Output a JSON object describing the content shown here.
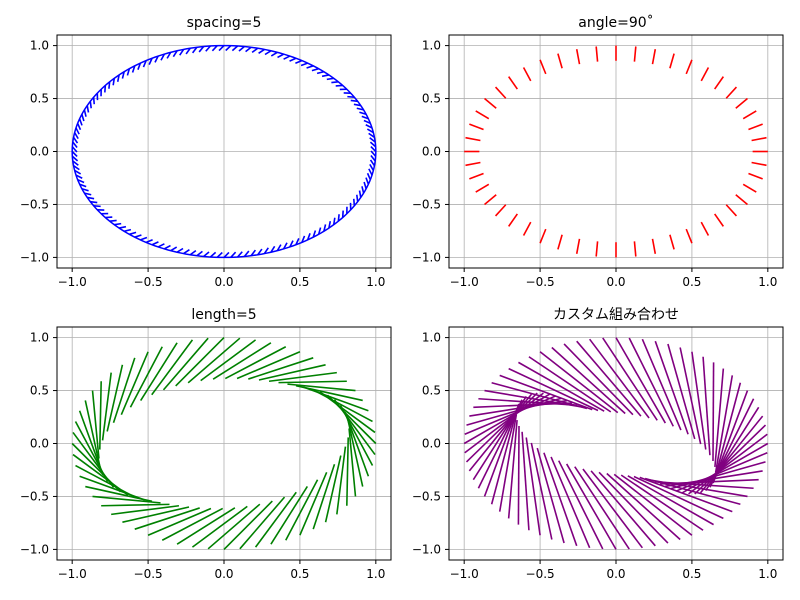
{
  "chart_data": [
    {
      "type": "line",
      "title": "spacing=5",
      "color": "#0000ff",
      "xlim": [
        -1.1,
        1.1
      ],
      "ylim": [
        -1.1,
        1.1
      ],
      "xticks": [
        "−1.0",
        "−0.5",
        "0.0",
        "0.5",
        "1.0"
      ],
      "yticks": [
        "−1.0",
        "−0.5",
        "0.0",
        "0.5",
        "1.0"
      ],
      "grid": true,
      "series": [
        {
          "kind": "ellipse-with-tick-path",
          "rx": 1.0,
          "ry": 1.0,
          "tick_spacing": 5,
          "tick_angle_deg": 45,
          "tick_length_data": 0.05
        }
      ]
    },
    {
      "type": "line",
      "title": "angle=90˚",
      "color": "#ff0000",
      "xlim": [
        -1.1,
        1.1
      ],
      "ylim": [
        -1.1,
        1.1
      ],
      "xticks": [
        "−1.0",
        "−0.5",
        "0.0",
        "0.5",
        "1.0"
      ],
      "yticks": [
        "−1.0",
        "−0.5",
        "0.0",
        "0.5",
        "1.0"
      ],
      "grid": true,
      "series": [
        {
          "kind": "tick-path",
          "rx": 1.0,
          "ry": 1.0,
          "tick_count": 48,
          "tick_angle_deg": 90,
          "tick_length_data": 0.1
        }
      ]
    },
    {
      "type": "line",
      "title": "length=5",
      "color": "#008000",
      "xlim": [
        -1.1,
        1.1
      ],
      "ylim": [
        -1.1,
        1.1
      ],
      "xticks": [
        "−1.0",
        "−0.5",
        "0.0",
        "0.5",
        "1.0"
      ],
      "yticks": [
        "−1.0",
        "−0.5",
        "0.0",
        "0.5",
        "1.0"
      ],
      "grid": true,
      "series": [
        {
          "kind": "tick-path",
          "rx": 1.0,
          "ry": 1.0,
          "tick_count": 60,
          "tick_angle_deg": 45,
          "tick_length_data": 0.45
        }
      ]
    },
    {
      "type": "line",
      "title": "カスタム組み合わせ",
      "color": "#800080",
      "xlim": [
        -1.1,
        1.1
      ],
      "ylim": [
        -1.1,
        1.1
      ],
      "xticks": [
        "−1.0",
        "−0.5",
        "0.0",
        "0.5",
        "1.0"
      ],
      "yticks": [
        "−1.0",
        "−0.5",
        "0.0",
        "0.5",
        "1.0"
      ],
      "grid": true,
      "series": [
        {
          "kind": "tick-path",
          "rx": 1.0,
          "ry": 1.0,
          "tick_count": 72,
          "tick_angle_deg": 120,
          "tick_length_data": 0.65
        }
      ]
    }
  ]
}
